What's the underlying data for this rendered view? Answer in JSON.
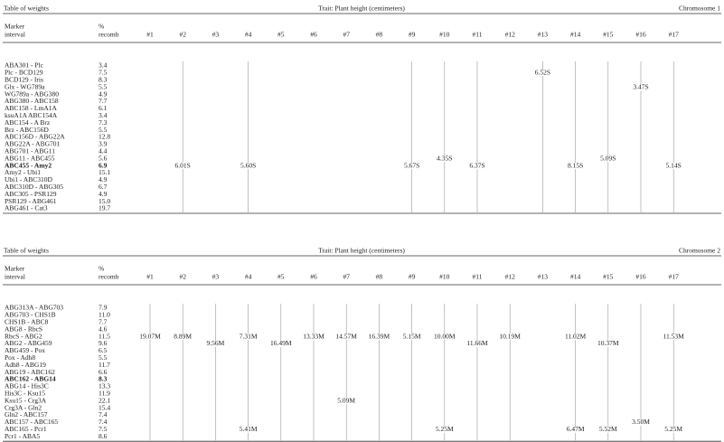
{
  "tables": [
    {
      "title": "Table of weights",
      "trait": "Trait: Plant height (centimeters)",
      "chromosome": "Chromosome 1",
      "marker_header": [
        "Marker",
        "interval"
      ],
      "recomb_header": [
        "%",
        "recomb"
      ],
      "columns": [
        "#1",
        "#2",
        "#3",
        "#4",
        "#5",
        "#6",
        "#7",
        "#8",
        "#9",
        "#10",
        "#11",
        "#12",
        "#13",
        "#14",
        "#15",
        "#16",
        "#17"
      ],
      "rows": [
        {
          "interval": "ABA301 - Plc",
          "recomb": "3.4"
        },
        {
          "interval": "Plc - BCD129",
          "recomb": "7.5",
          "weights": [
            null,
            null,
            null,
            null,
            null,
            null,
            null,
            null,
            null,
            null,
            null,
            null,
            "6.52S",
            null,
            null,
            null,
            null
          ]
        },
        {
          "interval": "BCD129 - Iris",
          "recomb": "8.3"
        },
        {
          "interval": "Glx - WG789a",
          "recomb": "5.5",
          "weights": [
            null,
            null,
            null,
            null,
            null,
            null,
            null,
            null,
            null,
            null,
            null,
            null,
            null,
            null,
            null,
            "3.47S",
            null
          ]
        },
        {
          "interval": "WG789a - ABG380",
          "recomb": "4.9"
        },
        {
          "interval": "ABG380 - ABC158",
          "recomb": "7.7"
        },
        {
          "interval": "ABC158 - LmA1A",
          "recomb": "6.1"
        },
        {
          "interval": "ksuA1A ABC154A",
          "recomb": "3.4"
        },
        {
          "interval": "ABC154 - A Brz",
          "recomb": "7.3"
        },
        {
          "interval": "Brz - ABC156D",
          "recomb": "5.5"
        },
        {
          "interval": "ABC156D - ABG22A",
          "recomb": "12.8"
        },
        {
          "interval": "ABG22A - ABG701",
          "recomb": "3.9"
        },
        {
          "interval": "ABG701 - ABG11",
          "recomb": "4.4"
        },
        {
          "interval": "ABG11 - ABC455",
          "recomb": "5.6",
          "weights": [
            null,
            null,
            null,
            null,
            null,
            null,
            null,
            null,
            null,
            "4.35S",
            null,
            null,
            null,
            null,
            "5.09S",
            null,
            null
          ]
        },
        {
          "interval": "ABC455 - Amy2",
          "recomb": "6.9",
          "bold": true,
          "weights": [
            null,
            "6.01S",
            null,
            "5.60S",
            null,
            null,
            null,
            null,
            "5.67S",
            null,
            "6.37S",
            null,
            null,
            "8.15S",
            null,
            null,
            "5.14S"
          ]
        },
        {
          "interval": "Amy2 - Ubi1",
          "recomb": "15.1"
        },
        {
          "interval": "Ubi1 - ABC310D",
          "recomb": "4.9"
        },
        {
          "interval": "ABC310D - ABG305",
          "recomb": "6.7"
        },
        {
          "interval": "ABC305 - PSR129",
          "recomb": "4.9"
        },
        {
          "interval": "PSR129 - ABG461",
          "recomb": "15.0"
        },
        {
          "interval": "ABG461 - Cat3",
          "recomb": "19.7"
        }
      ]
    },
    {
      "title": "Table of weights",
      "trait": "Trait: Plant height (centimeters)",
      "chromosome": "Chromosome 2",
      "marker_header": [
        "Marker",
        "interval"
      ],
      "recomb_header": [
        "%",
        "recomb"
      ],
      "columns": [
        "#1",
        "#2",
        "#3",
        "#4",
        "#5",
        "#6",
        "#7",
        "#8",
        "#9",
        "#10",
        "#11",
        "#12",
        "#13",
        "#14",
        "#15",
        "#16",
        "#17"
      ],
      "rows": [
        {
          "interval": "ABG313A - ABG703",
          "recomb": "7.9"
        },
        {
          "interval": "ABG703 - CHS1B",
          "recomb": "11.0"
        },
        {
          "interval": "CHS1B - ABC8",
          "recomb": "7.7"
        },
        {
          "interval": "ABG8 - RbcS",
          "recomb": "4.6"
        },
        {
          "interval": "RbcS - ABG2",
          "recomb": "11.5",
          "weights": [
            "19.07M",
            "8.89M",
            null,
            "7.31M",
            null,
            "13.33M",
            "14.57M",
            "16.39M",
            "5.15M",
            "10.00M",
            null,
            "10.19M",
            null,
            "11.02M",
            null,
            null,
            "11.53M"
          ]
        },
        {
          "interval": "ABG2 - ABG459",
          "recomb": "9.6",
          "weights": [
            null,
            null,
            "9.56M",
            null,
            "16.49M",
            null,
            null,
            null,
            null,
            null,
            "11.66M",
            null,
            null,
            null,
            "10.37M",
            null,
            null
          ]
        },
        {
          "interval": "ABG459 - Pox",
          "recomb": "6.5"
        },
        {
          "interval": "Pox - Adh8",
          "recomb": "5.5"
        },
        {
          "interval": "Adh8 - ABG19",
          "recomb": "11.7"
        },
        {
          "interval": "ABG19 - ABC162",
          "recomb": "6.6"
        },
        {
          "interval": "ABC162 - ABG14",
          "recomb": "8.3",
          "bold": true
        },
        {
          "interval": "ABG14 - His3C",
          "recomb": "13.3"
        },
        {
          "interval": "His3C - Ksu15",
          "recomb": "11.9"
        },
        {
          "interval": "Ksu15 - Crg3A",
          "recomb": "22.1",
          "weights": [
            null,
            null,
            null,
            null,
            null,
            null,
            "5.09M",
            null,
            null,
            null,
            null,
            null,
            null,
            null,
            null,
            null,
            null
          ]
        },
        {
          "interval": "Crg3A - Gln2",
          "recomb": "15.4"
        },
        {
          "interval": "Gln2 - ABC157",
          "recomb": "7.4"
        },
        {
          "interval": "ABC157 - ABC165",
          "recomb": "7.4",
          "weights": [
            null,
            null,
            null,
            null,
            null,
            null,
            null,
            null,
            null,
            null,
            null,
            null,
            null,
            null,
            null,
            "3.50M",
            null
          ]
        },
        {
          "interval": "ABC165 - Pcr1",
          "recomb": "7.5",
          "weights": [
            null,
            null,
            null,
            "5.41M",
            null,
            null,
            null,
            null,
            null,
            "5.25M",
            null,
            null,
            null,
            "6.47M",
            "5.52M",
            null,
            "5.25M"
          ]
        },
        {
          "interval": "Pcr1 - ABA5",
          "recomb": "8.6"
        }
      ]
    }
  ]
}
